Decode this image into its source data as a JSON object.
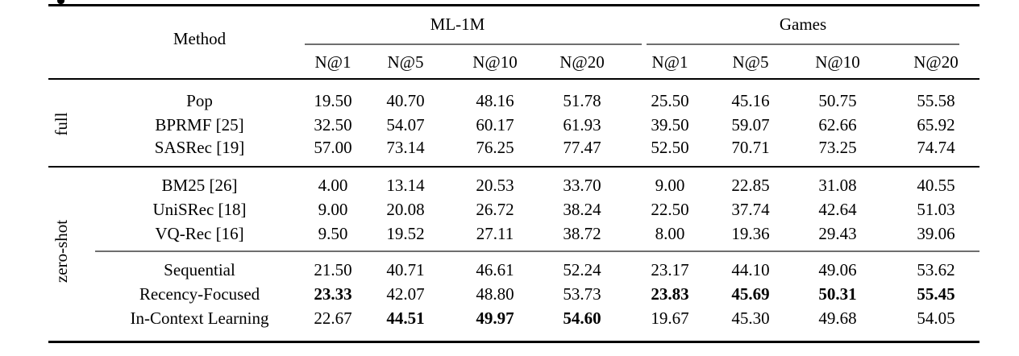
{
  "table": {
    "header": {
      "method": "Method",
      "groups": [
        {
          "label": "ML-1M",
          "metrics": [
            "N@1",
            "N@5",
            "N@10",
            "N@20"
          ]
        },
        {
          "label": "Games",
          "metrics": [
            "N@1",
            "N@5",
            "N@10",
            "N@20"
          ]
        }
      ]
    },
    "sections": [
      {
        "label": "full",
        "groups": [
          {
            "rows": [
              {
                "method": "Pop",
                "values": [
                  "19.50",
                  "40.70",
                  "48.16",
                  "51.78",
                  "25.50",
                  "45.16",
                  "50.75",
                  "55.58"
                ],
                "bold": []
              },
              {
                "method": "BPRMF [25]",
                "values": [
                  "32.50",
                  "54.07",
                  "60.17",
                  "61.93",
                  "39.50",
                  "59.07",
                  "62.66",
                  "65.92"
                ],
                "bold": []
              },
              {
                "method": "SASRec [19]",
                "values": [
                  "57.00",
                  "73.14",
                  "76.25",
                  "77.47",
                  "52.50",
                  "70.71",
                  "73.25",
                  "74.74"
                ],
                "bold": []
              }
            ]
          }
        ]
      },
      {
        "label": "zero-shot",
        "groups": [
          {
            "rows": [
              {
                "method": "BM25 [26]",
                "values": [
                  "4.00",
                  "13.14",
                  "20.53",
                  "33.70",
                  "9.00",
                  "22.85",
                  "31.08",
                  "40.55"
                ],
                "bold": []
              },
              {
                "method": "UniSRec [18]",
                "values": [
                  "9.00",
                  "20.08",
                  "26.72",
                  "38.24",
                  "22.50",
                  "37.74",
                  "42.64",
                  "51.03"
                ],
                "bold": []
              },
              {
                "method": "VQ-Rec [16]",
                "values": [
                  "9.50",
                  "19.52",
                  "27.11",
                  "38.72",
                  "8.00",
                  "19.36",
                  "29.43",
                  "39.06"
                ],
                "bold": []
              }
            ]
          },
          {
            "rows": [
              {
                "method": "Sequential",
                "values": [
                  "21.50",
                  "40.71",
                  "46.61",
                  "52.24",
                  "23.17",
                  "44.10",
                  "49.06",
                  "53.62"
                ],
                "bold": []
              },
              {
                "method": "Recency-Focused",
                "values": [
                  "23.33",
                  "42.07",
                  "48.80",
                  "53.73",
                  "23.83",
                  "45.69",
                  "50.31",
                  "55.45"
                ],
                "bold": [
                  0,
                  4,
                  5,
                  6,
                  7
                ]
              },
              {
                "method": "In-Context Learning",
                "values": [
                  "22.67",
                  "44.51",
                  "49.97",
                  "54.60",
                  "19.67",
                  "45.30",
                  "49.68",
                  "54.05"
                ],
                "bold": [
                  1,
                  2,
                  3
                ]
              }
            ]
          }
        ]
      }
    ]
  }
}
